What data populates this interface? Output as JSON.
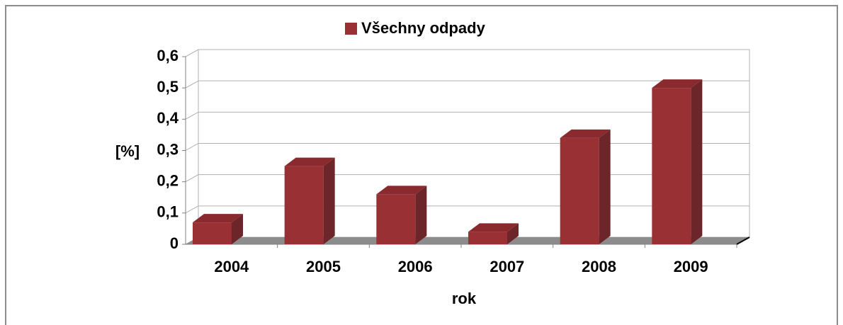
{
  "chart_data": {
    "type": "bar3d",
    "legend": "Všechny odpady",
    "xlabel": "rok",
    "ylabel": "[%]",
    "categories": [
      "2004",
      "2005",
      "2006",
      "2007",
      "2008",
      "2009"
    ],
    "series": [
      {
        "name": "Všechny odpady",
        "color": "#983034",
        "values": [
          0.07,
          0.25,
          0.16,
          0.04,
          0.34,
          0.5
        ]
      }
    ],
    "ylim": [
      0,
      0.6
    ],
    "yticks": [
      0,
      {
        "value": 0.1,
        "label": "0,1"
      },
      {
        "value": 0.2,
        "label": "0,2"
      },
      {
        "value": 0.3,
        "label": "0,3"
      },
      {
        "value": 0.4,
        "label": "0,4"
      },
      {
        "value": 0.5,
        "label": "0,5"
      },
      {
        "value": 0.6,
        "label": "0,6"
      }
    ],
    "grid": true,
    "legend_position": "top"
  }
}
